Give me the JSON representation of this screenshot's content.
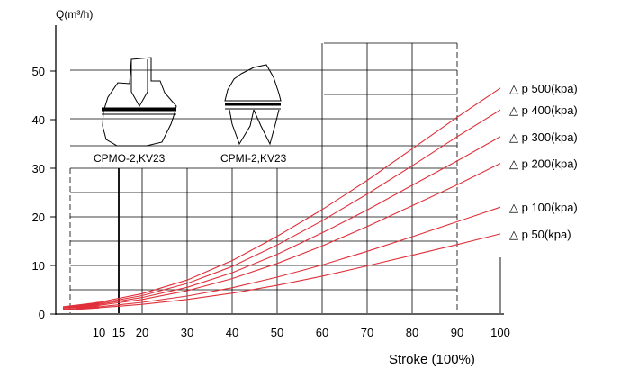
{
  "chart_data": {
    "type": "line",
    "ylabel": "Q(m³/h)",
    "xlabel": "Stroke (100%)",
    "xlim": [
      0,
      100
    ],
    "ylim": [
      0,
      55
    ],
    "x_ticks": [
      10,
      15,
      20,
      30,
      40,
      50,
      60,
      70,
      80,
      90,
      100
    ],
    "y_ticks": [
      0,
      10,
      20,
      30,
      40,
      50
    ],
    "grid": true,
    "legend_placement": "right",
    "series": [
      {
        "name": "△ p 500(kpa)",
        "x": [
          0,
          10,
          20,
          30,
          40,
          50,
          60,
          70,
          80,
          90,
          100
        ],
        "y": [
          1.5,
          2.4,
          4.2,
          7.0,
          11.0,
          16.0,
          21.5,
          27.5,
          34.0,
          40.5,
          46.5
        ]
      },
      {
        "name": "△ p 400(kpa)",
        "x": [
          0,
          10,
          20,
          30,
          40,
          50,
          60,
          70,
          80,
          90,
          100
        ],
        "y": [
          1.4,
          2.2,
          3.8,
          6.3,
          9.8,
          14.2,
          19.2,
          24.7,
          30.5,
          36.5,
          42.0
        ]
      },
      {
        "name": "△ p 300(kpa)",
        "x": [
          0,
          10,
          20,
          30,
          40,
          50,
          60,
          70,
          80,
          90,
          100
        ],
        "y": [
          1.3,
          2.0,
          3.4,
          5.5,
          8.5,
          12.3,
          16.7,
          21.4,
          26.5,
          31.5,
          36.5
        ]
      },
      {
        "name": "△ p 200(kpa)",
        "x": [
          0,
          10,
          20,
          30,
          40,
          50,
          60,
          70,
          80,
          90,
          100
        ],
        "y": [
          1.2,
          1.8,
          3.0,
          4.8,
          7.3,
          10.4,
          14.0,
          18.0,
          22.3,
          26.6,
          31.0
        ]
      },
      {
        "name": "△ p 100(kpa)",
        "x": [
          0,
          10,
          20,
          30,
          40,
          50,
          60,
          70,
          80,
          90,
          100
        ],
        "y": [
          1.0,
          1.5,
          2.4,
          3.7,
          5.4,
          7.6,
          10.1,
          12.9,
          15.9,
          19.0,
          22.0
        ]
      },
      {
        "name": "△ p 50(kpa)",
        "x": [
          0,
          10,
          20,
          30,
          40,
          50,
          60,
          70,
          80,
          90,
          100
        ],
        "y": [
          0.9,
          1.3,
          2.0,
          3.0,
          4.3,
          5.9,
          7.8,
          9.9,
          12.1,
          14.3,
          16.5
        ]
      }
    ],
    "annotations": [
      "CPMO-2,KV23",
      "CPMI-2,KV23"
    ],
    "line_color": "#e0303a"
  }
}
